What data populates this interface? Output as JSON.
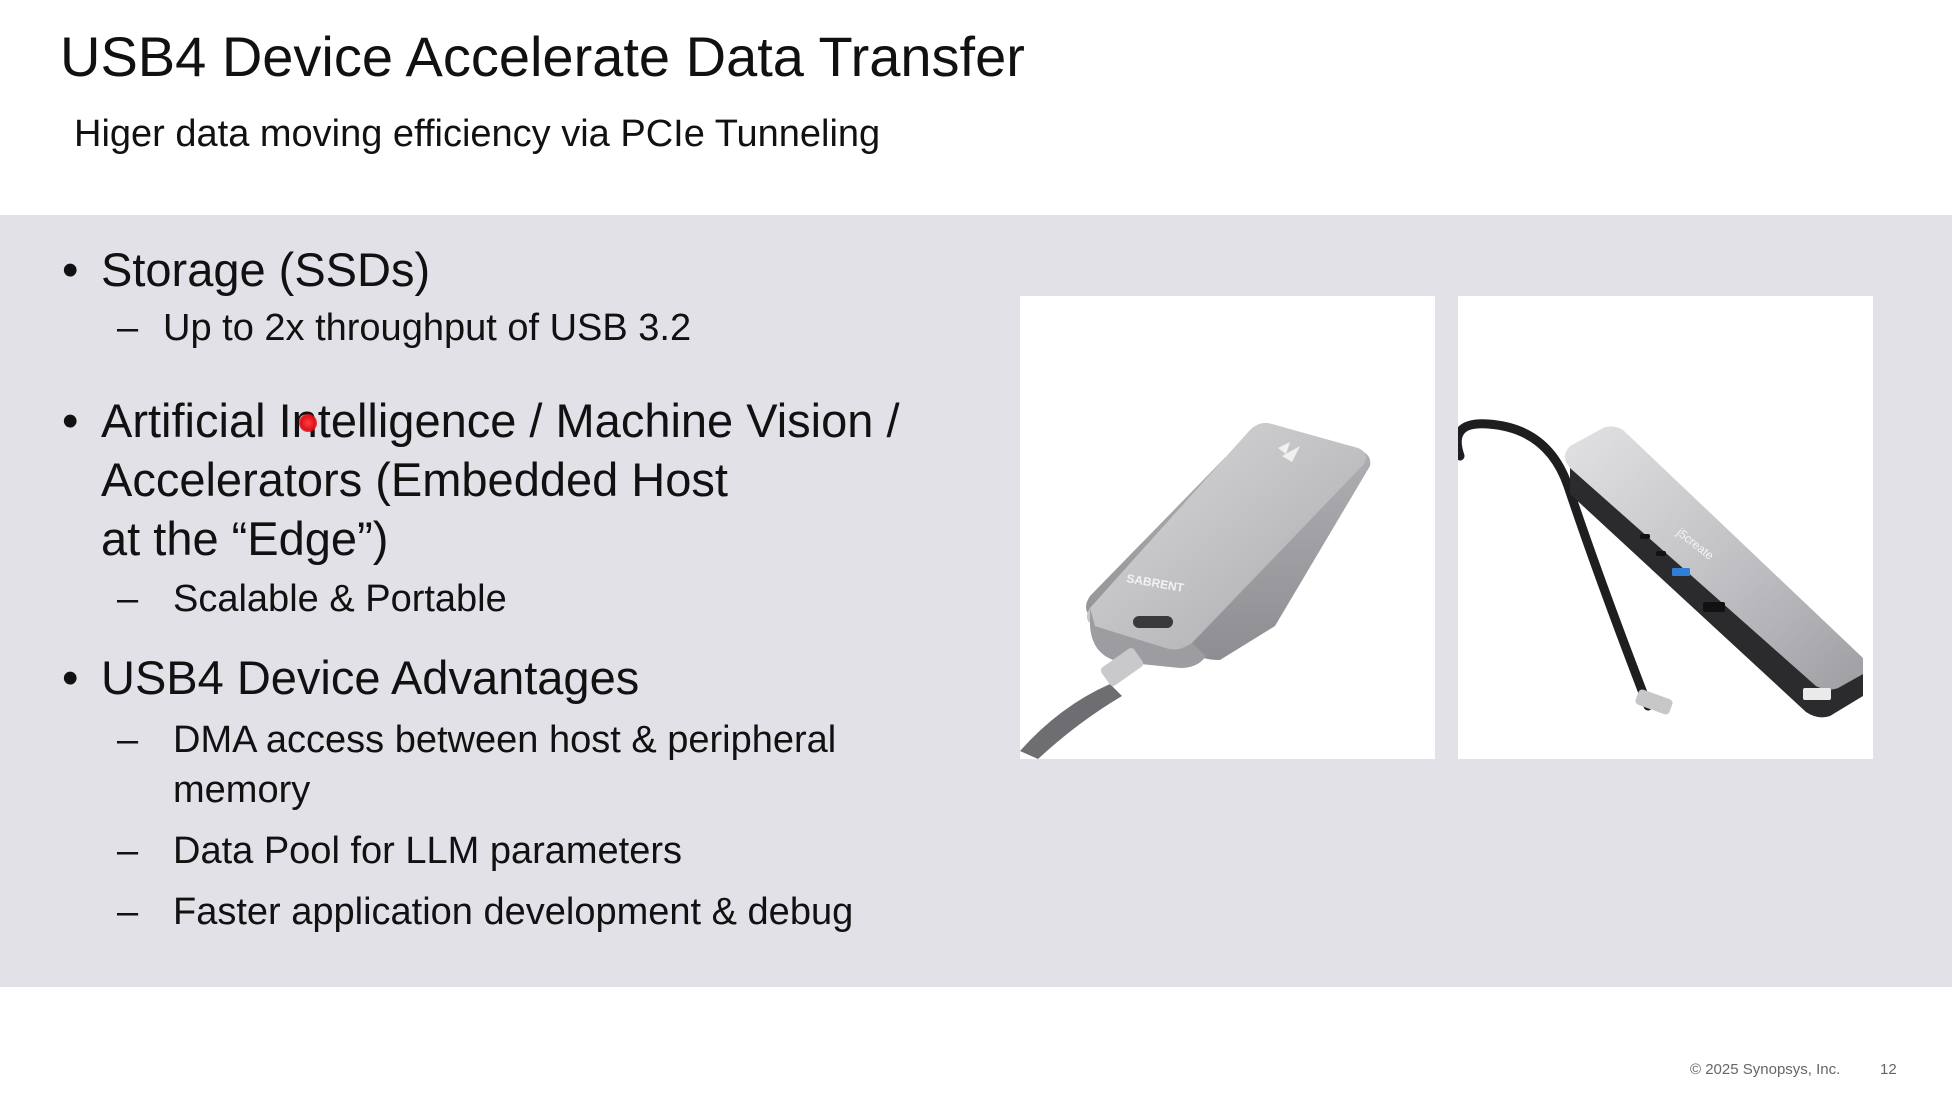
{
  "slide": {
    "title": "USB4 Device Accelerate Data Transfer",
    "subtitle": "Higer data moving efficiency via PCIe Tunneling"
  },
  "bullets": [
    {
      "text": "Storage (SSDs)",
      "subs": [
        "Up to 2x throughput of USB 3.2"
      ]
    },
    {
      "lines": [
        "Artificial Intelligence / Machine Vision /",
        "Accelerators (Embedded Host",
        "at the “Edge”)"
      ],
      "subs": [
        "Scalable & Portable"
      ]
    },
    {
      "text": "USB4 Device Advantages",
      "subs": [
        [
          "DMA access between host & peripheral",
          "memory"
        ],
        "Data Pool for LLM parameters",
        "Faster application development & debug"
      ]
    }
  ],
  "markers": {
    "bullet": "•",
    "dash": "–"
  },
  "images": {
    "ssd_brand": "SABRENT",
    "dock_brand": "j5create"
  },
  "footer": {
    "copyright": "© 2025 Synopsys, Inc.",
    "page": "12"
  }
}
